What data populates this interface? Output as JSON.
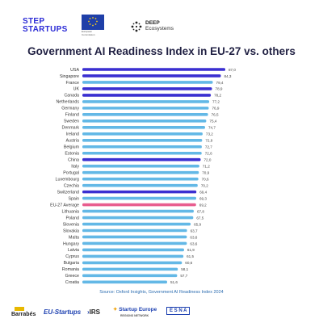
{
  "header": {
    "logo_line1": "STEP",
    "logo_line2": "STARTUPS",
    "eu_caption": "European Commission",
    "deep_line1": "DEEP",
    "deep_line2": "Ecosystems"
  },
  "footer": {
    "logo1": "Barrabés",
    "logo2": "EU-Startups",
    "logo3": "IRS",
    "logo4": "Startup Europe",
    "logo4_sub": "REGIONS NETWORK",
    "logo5": "E S N A"
  },
  "colors": {
    "bar_default": "#63b8e6",
    "bar_highlight": "#3a2fd1",
    "bar_eu_average": "#e85d8f",
    "title": "#222244",
    "source": "#2b6cb0"
  },
  "chart_data": {
    "type": "bar",
    "orientation": "horizontal",
    "title": "Government AI Readiness Index in EU-27 vs. others",
    "source": "Source: Oxford Insights, Government AI Readiness Index 2024",
    "categories": [
      "USA",
      "Singapore",
      "France",
      "UK",
      "Canada",
      "Netherlands",
      "Germany",
      "Finland",
      "Sweden",
      "Denmark",
      "Ireland",
      "Austria",
      "Belgium",
      "Estonia",
      "China",
      "Italy",
      "Portugal",
      "Luxembourg",
      "Czechia",
      "Switzerland",
      "Spain",
      "EU-27 Average",
      "Lithuania",
      "Poland",
      "Slovenia",
      "Slovakia",
      "Malta",
      "Hungary",
      "Latvia",
      "Cyprus",
      "Bulgaria",
      "Romania",
      "Greece",
      "Croatia"
    ],
    "values": [
      87.0,
      84.3,
      79.4,
      78.9,
      78.2,
      77.2,
      76.9,
      76.5,
      75.4,
      74.7,
      73.2,
      72.9,
      72.7,
      72.6,
      72.0,
      71.2,
      70.9,
      70.6,
      70.2,
      69.4,
      69.3,
      69.2,
      67.8,
      67.5,
      65.9,
      63.7,
      63.6,
      63.6,
      61.9,
      61.5,
      60.6,
      58.1,
      57.7,
      51.6
    ],
    "value_labels": [
      "87,0",
      "84,3",
      "79,4",
      "78,9",
      "78,2",
      "77,2",
      "76,9",
      "76,5",
      "75,4",
      "74,7",
      "73,2",
      "72,9",
      "72,7",
      "72,6",
      "72,0",
      "71,2",
      "70,9",
      "70,6",
      "70,2",
      "69,4",
      "69,3",
      "69,2",
      "67,8",
      "67,5",
      "65,9",
      "63,7",
      "63,6",
      "63,6",
      "61,9",
      "61,5",
      "60,6",
      "58,1",
      "57,7",
      "51,6"
    ],
    "highlight": {
      "USA": "dark",
      "Singapore": "dark",
      "UK": "dark",
      "Canada": "dark",
      "China": "dark",
      "Switzerland": "dark",
      "EU-27 Average": "pink"
    }
  }
}
